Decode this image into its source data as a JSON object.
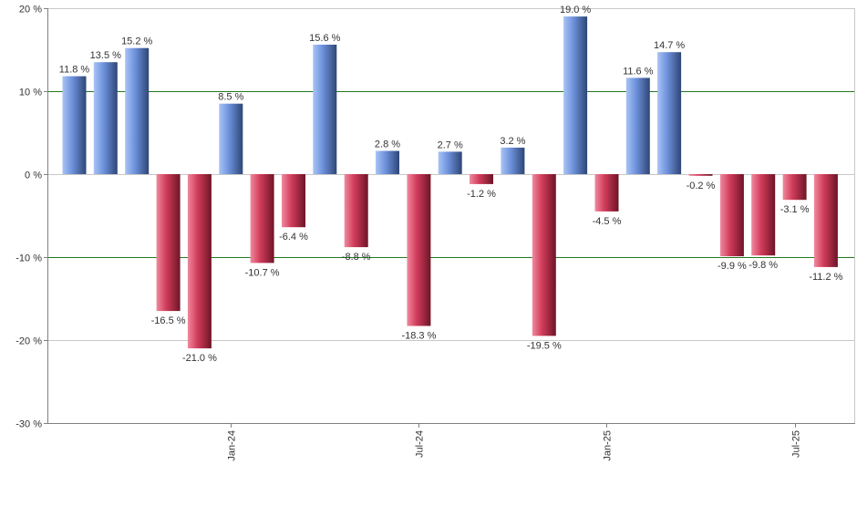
{
  "chart_data": {
    "type": "bar",
    "title": "",
    "xlabel": "",
    "ylabel": "",
    "ylim": [
      -30,
      20
    ],
    "y_ticks": [
      20,
      10,
      0,
      -10,
      -20,
      -30
    ],
    "y_tick_suffix": " %",
    "grid": "horizontal",
    "highlight_gridlines": [
      10,
      -10
    ],
    "value_suffix": " %",
    "x_tick_labels": [
      {
        "label": "Jan-24",
        "bar_index": 5
      },
      {
        "label": "Jul-24",
        "bar_index": 11
      },
      {
        "label": "Jan-25",
        "bar_index": 17
      },
      {
        "label": "Jul-25",
        "bar_index": 23
      }
    ],
    "values": [
      11.8,
      13.5,
      15.2,
      -16.5,
      -21.0,
      8.5,
      -10.7,
      -6.4,
      15.6,
      -8.8,
      2.8,
      -18.3,
      2.7,
      -1.2,
      3.2,
      -19.5,
      19.0,
      -4.5,
      11.6,
      14.7,
      -0.2,
      -9.9,
      -9.8,
      -3.1,
      -11.2
    ],
    "colors": {
      "positive_light": "#a9c4f5",
      "positive_mid": "#6f93dd",
      "positive_dark": "#2e4676",
      "negative_light": "#f08a9f",
      "negative_mid": "#d23d5c",
      "negative_dark": "#6e1426",
      "grid": "#c8c8c8",
      "highlight_grid": "#1f7a1f",
      "axis": "#808080"
    }
  }
}
